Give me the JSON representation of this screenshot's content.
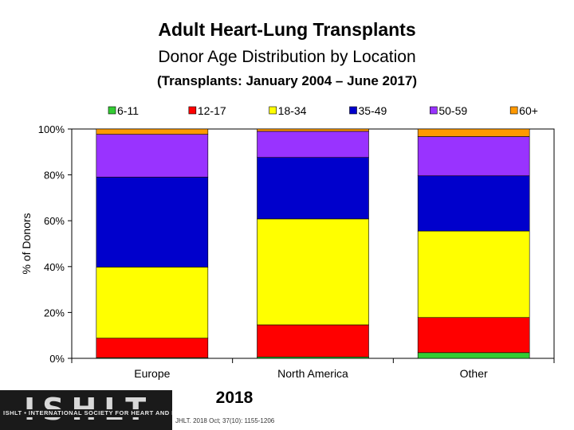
{
  "titles": {
    "line1": "Adult Heart-Lung Transplants",
    "line2": "Donor Age Distribution by Location",
    "line3": "(Transplants: January 2004 – June 2017)"
  },
  "chart_data": {
    "type": "bar",
    "stacked": true,
    "percent": true,
    "ylabel": "% of Donors",
    "ylim": [
      0,
      100
    ],
    "yticks": [
      "0%",
      "20%",
      "40%",
      "60%",
      "80%",
      "100%"
    ],
    "categories": [
      "Europe",
      "North America",
      "Other"
    ],
    "legend_position": "top",
    "series": [
      {
        "name": "6-11",
        "color": "#33cc33",
        "values": [
          0.3,
          0.6,
          2.5
        ]
      },
      {
        "name": "12-17",
        "color": "#ff0000",
        "values": [
          8.5,
          14.0,
          15.3
        ]
      },
      {
        "name": "18-34",
        "color": "#ffff00",
        "values": [
          31.0,
          46.2,
          37.7
        ]
      },
      {
        "name": "35-49",
        "color": "#0000cc",
        "values": [
          39.2,
          26.8,
          24.1
        ]
      },
      {
        "name": "50-59",
        "color": "#9933ff",
        "values": [
          18.7,
          11.4,
          17.1
        ]
      },
      {
        "name": "60+",
        "color": "#ff9900",
        "values": [
          2.3,
          1.0,
          3.3
        ]
      }
    ],
    "grid": false
  },
  "footer": {
    "logo": "ISHLT",
    "logo_subtitle": "ISHLT • INTERNATIONAL SOCIETY FOR HEART AND LUNG TRANSPLANTATION",
    "year": "2018",
    "citation": "JHLT. 2018 Oct; 37(10): 1155-1206"
  }
}
